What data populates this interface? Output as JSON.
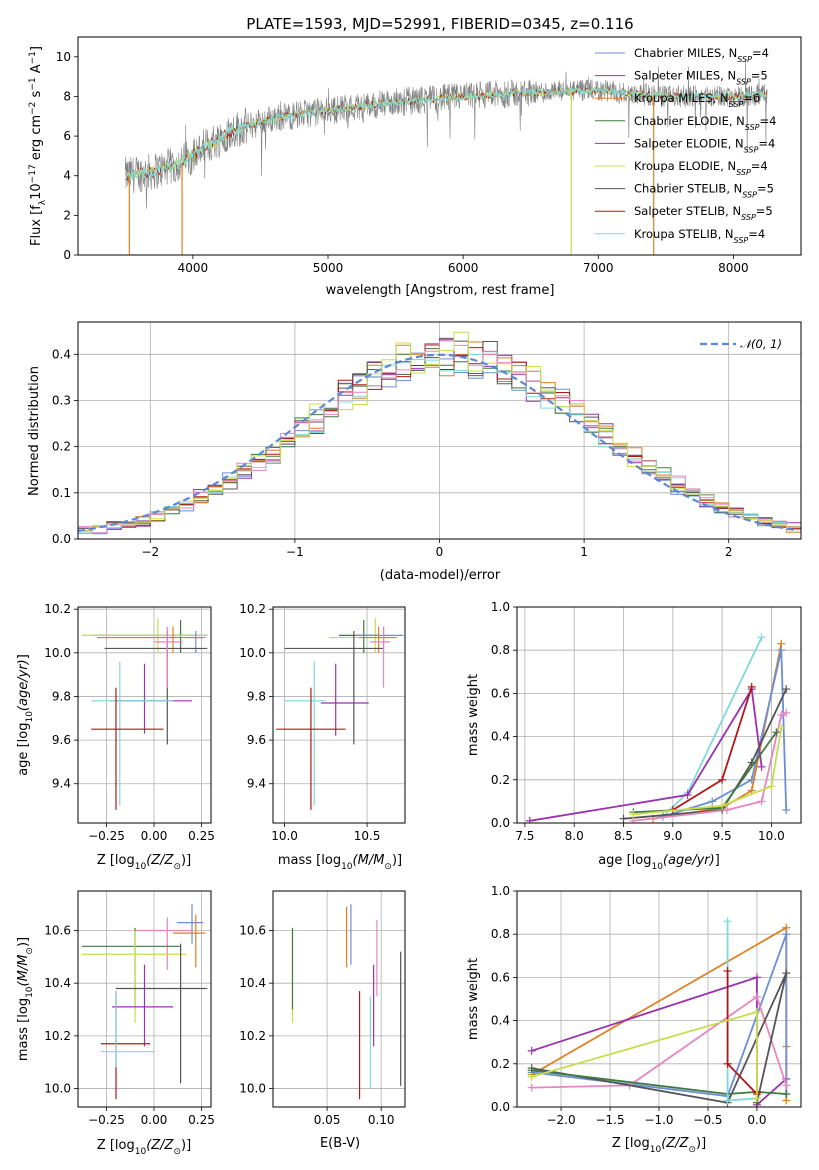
{
  "palette": [
    "#6b8ed6",
    "#9b31b0",
    "#e07f22",
    "#3f7a3f",
    "#9b31b0",
    "#c8dd4d",
    "#555555",
    "#b01818",
    "#7fd8dc"
  ],
  "chart_data": [
    {
      "id": "spectrum",
      "type": "line",
      "title": "PLATE=1593, MJD=52991, FIBERID=0345, z=0.116",
      "xlabel": "wavelength [Angstrom, rest frame]",
      "ylabel": "Flux [f",
      "xlim": [
        3150,
        8500
      ],
      "ylim": [
        0,
        11
      ],
      "xticks": [
        4000,
        5000,
        6000,
        7000,
        8000
      ],
      "yticks": [
        0,
        2,
        4,
        6,
        8,
        10
      ],
      "legend_position": "right",
      "data_color": "#808080",
      "model_color": "#7fd8dc",
      "continuum": {
        "x": [
          3500,
          3700,
          3900,
          4100,
          4300,
          4600,
          5000,
          5500,
          6000,
          6500,
          7000,
          7500,
          8000,
          8250
        ],
        "y": [
          4.0,
          4.2,
          4.6,
          5.5,
          6.3,
          6.9,
          7.3,
          7.7,
          8.0,
          8.2,
          8.3,
          8.0,
          8.0,
          8.1
        ]
      },
      "dropouts": [
        {
          "x": 3530,
          "color": "#e07f22"
        },
        {
          "x": 3920,
          "color": "#e07f22"
        },
        {
          "x": 6800,
          "color": "#c8dd4d"
        },
        {
          "x": 7410,
          "color": "#e07f22"
        }
      ],
      "legend": [
        {
          "base": "Chabrier MILES, N",
          "sub": "SSP",
          "tail": "=4",
          "color": "#6b8ed6"
        },
        {
          "base": "Salpeter MILES, N",
          "sub": "SSP",
          "tail": "=5",
          "color": "#9b31b0"
        },
        {
          "base": "Kroupa MILES, N",
          "sub": "SSP",
          "tail": "=6",
          "color": "#e07f22"
        },
        {
          "base": "Chabrier ELODIE, N",
          "sub": "SSP",
          "tail": "=4",
          "color": "#3f7a3f"
        },
        {
          "base": "Salpeter ELODIE, N",
          "sub": "SSP",
          "tail": "=4",
          "color": "#9b31b0"
        },
        {
          "base": "Kroupa ELODIE, N",
          "sub": "SSP",
          "tail": "=4",
          "color": "#c8dd4d"
        },
        {
          "base": "Chabrier STELIB, N",
          "sub": "SSP",
          "tail": "=5",
          "color": "#555555"
        },
        {
          "base": "Salpeter STELIB, N",
          "sub": "SSP",
          "tail": "=5",
          "color": "#b01818"
        },
        {
          "base": "Kroupa STELIB, N",
          "sub": "SSP",
          "tail": "=4",
          "color": "#7fd8dc"
        }
      ]
    },
    {
      "id": "residuals",
      "type": "line",
      "xlabel": "(data-model)/error",
      "ylabel": "Normed distribution",
      "xlim": [
        -2.5,
        2.5
      ],
      "ylim": [
        0,
        0.47
      ],
      "xticks": [
        -2,
        -1,
        0,
        1,
        2
      ],
      "yticks": [
        0.0,
        0.1,
        0.2,
        0.3,
        0.4
      ],
      "grid": true,
      "legend_position": "top-right",
      "legend": "𝒩(0, 1)",
      "gaussian": {
        "mean": 0,
        "sigma": 1,
        "color": "#5b88d6"
      },
      "hist_bin_width": 0.1,
      "hist_colors": [
        "#6b8ed6",
        "#9b31b0",
        "#e07f22",
        "#3f7a3f",
        "#555555",
        "#b01818",
        "#7fd8dc",
        "#e884c0",
        "#c8dd4d"
      ]
    },
    {
      "id": "age-vs-Z",
      "type": "scatter",
      "xlabel": "Z [log",
      "ylabel": "age  [log",
      "xlim": [
        -0.4,
        0.3
      ],
      "ylim": [
        9.22,
        10.21
      ],
      "xticks": [
        -0.25,
        0.0,
        0.25
      ],
      "yticks": [
        9.4,
        9.6,
        9.8,
        10.0,
        10.2
      ],
      "grid": true,
      "points": [
        {
          "x": 0.14,
          "xe": [
            -0.32,
            0.28
          ],
          "y": 10.08,
          "ye": [
            10.0,
            10.15
          ],
          "color": "#3f7a3f"
        },
        {
          "x": 0.02,
          "xe": [
            -0.38,
            0.28
          ],
          "y": 10.08,
          "ye": [
            10.0,
            10.16
          ],
          "color": "#c8dd4d"
        },
        {
          "x": 0.22,
          "xe": [
            0.18,
            0.26
          ],
          "y": 10.07,
          "ye": [
            10.0,
            10.1
          ],
          "color": "#6b8ed6"
        },
        {
          "x": 0.1,
          "xe": [
            -0.3,
            0.27
          ],
          "y": 10.07,
          "ye": [
            10.0,
            10.12
          ],
          "color": "#e07f22"
        },
        {
          "x": 0.07,
          "xe": [
            -0.26,
            0.28
          ],
          "y": 10.02,
          "ye": [
            9.58,
            10.1
          ],
          "color": "#555555"
        },
        {
          "x": -0.05,
          "xe": [
            -0.23,
            0.2
          ],
          "y": 9.78,
          "ye": [
            9.63,
            9.95
          ],
          "color": "#9b31b0"
        },
        {
          "x": -0.18,
          "xe": [
            -0.33,
            0.1
          ],
          "y": 9.78,
          "ye": [
            9.3,
            9.96
          ],
          "color": "#7fd8dc"
        },
        {
          "x": -0.2,
          "xe": [
            -0.33,
            0.05
          ],
          "y": 9.65,
          "ye": [
            9.28,
            9.84
          ],
          "color": "#b01818"
        },
        {
          "x": 0.07,
          "xe": [
            0.0,
            0.15
          ],
          "y": 10.05,
          "ye": [
            9.84,
            10.12
          ],
          "color": "#e884c0"
        }
      ]
    },
    {
      "id": "age-vs-mass",
      "type": "scatter",
      "xlabel": "mass [log",
      "yticks": [
        9.4,
        9.6,
        9.8,
        10.0,
        10.2
      ],
      "xlim": [
        9.93,
        10.73
      ],
      "ylim": [
        9.22,
        10.21
      ],
      "xticks": [
        10.0,
        10.5
      ],
      "grid": true,
      "points": [
        {
          "x": 10.48,
          "xe": [
            10.33,
            10.57
          ],
          "y": 10.08,
          "ye": [
            10.0,
            10.15
          ],
          "color": "#3f7a3f"
        },
        {
          "x": 10.55,
          "xe": [
            10.27,
            10.63
          ],
          "y": 10.07,
          "ye": [
            10.0,
            10.16
          ],
          "color": "#c8dd4d"
        },
        {
          "x": 10.6,
          "xe": [
            10.43,
            10.72
          ],
          "y": 10.08,
          "ye": [
            10.0,
            10.12
          ],
          "color": "#6b8ed6"
        },
        {
          "x": 10.57,
          "xe": [
            10.45,
            10.68
          ],
          "y": 10.07,
          "ye": [
            10.0,
            10.12
          ],
          "color": "#e07f22"
        },
        {
          "x": 10.42,
          "xe": [
            10.0,
            10.6
          ],
          "y": 10.02,
          "ye": [
            9.58,
            10.1
          ],
          "color": "#555555"
        },
        {
          "x": 10.31,
          "xe": [
            10.22,
            10.51
          ],
          "y": 9.77,
          "ye": [
            9.62,
            9.95
          ],
          "color": "#9b31b0"
        },
        {
          "x": 10.18,
          "xe": [
            10.0,
            10.25
          ],
          "y": 9.78,
          "ye": [
            9.3,
            9.96
          ],
          "color": "#7fd8dc"
        },
        {
          "x": 10.16,
          "xe": [
            9.95,
            10.37
          ],
          "y": 9.65,
          "ye": [
            9.28,
            9.84
          ],
          "color": "#b01818"
        },
        {
          "x": 10.6,
          "xe": [
            10.52,
            10.64
          ],
          "y": 10.05,
          "ye": [
            9.84,
            10.12
          ],
          "color": "#e884c0"
        }
      ]
    },
    {
      "id": "mass-weight-vs-age",
      "type": "line",
      "xlabel": "age  [log",
      "ylabel": "mass weight",
      "xlim": [
        7.42,
        10.3
      ],
      "ylim": [
        0,
        1
      ],
      "xticks": [
        7.5,
        8.0,
        8.5,
        9.0,
        9.5,
        10.0
      ],
      "yticks": [
        0.0,
        0.2,
        0.4,
        0.6,
        0.8,
        1.0
      ],
      "grid": true,
      "series": [
        {
          "color": "#7fd8dc",
          "x": [
            8.9,
            9.15,
            9.9
          ],
          "y": [
            0.03,
            0.14,
            0.86
          ]
        },
        {
          "color": "#e07f22",
          "x": [
            8.8,
            9.5,
            9.8,
            10.1
          ],
          "y": [
            0.02,
            0.07,
            0.15,
            0.83
          ]
        },
        {
          "color": "#6b8ed6",
          "x": [
            8.9,
            9.4,
            9.8,
            10.1,
            10.15
          ],
          "y": [
            0.03,
            0.1,
            0.2,
            0.8,
            0.06
          ]
        },
        {
          "color": "#9b31b0",
          "x": [
            7.55,
            9.15,
            9.8,
            9.9
          ],
          "y": [
            0.01,
            0.13,
            0.62,
            0.26
          ]
        },
        {
          "color": "#b01818",
          "x": [
            9.0,
            9.5,
            9.8
          ],
          "y": [
            0.06,
            0.2,
            0.63
          ]
        },
        {
          "color": "#555555",
          "x": [
            8.5,
            9.5,
            9.8,
            10.15
          ],
          "y": [
            0.02,
            0.06,
            0.28,
            0.62
          ]
        },
        {
          "color": "#e884c0",
          "x": [
            8.6,
            9.55,
            9.9,
            10.1,
            10.15
          ],
          "y": [
            0.01,
            0.06,
            0.1,
            0.5,
            0.51
          ]
        },
        {
          "color": "#3f7a3f",
          "x": [
            8.6,
            9.5,
            10.05
          ],
          "y": [
            0.05,
            0.07,
            0.42
          ]
        },
        {
          "color": "#c8dd4d",
          "x": [
            8.6,
            9.5,
            10.0,
            10.1
          ],
          "y": [
            0.04,
            0.08,
            0.17,
            0.44
          ]
        }
      ]
    },
    {
      "id": "mass-vs-Z",
      "type": "scatter",
      "xlabel": "Z [log",
      "ylabel": "mass [log",
      "xlim": [
        -0.4,
        0.3
      ],
      "ylim": [
        9.93,
        10.75
      ],
      "xticks": [
        -0.25,
        0.0,
        0.25
      ],
      "yticks": [
        10.0,
        10.2,
        10.4,
        10.6
      ],
      "grid": true,
      "points": [
        {
          "x": 0.2,
          "xe": [
            0.12,
            0.26
          ],
          "y": 10.63,
          "ye": [
            10.55,
            10.7
          ],
          "color": "#6b8ed6"
        },
        {
          "x": 0.22,
          "xe": [
            0.1,
            0.27
          ],
          "y": 10.59,
          "ye": [
            10.46,
            10.66
          ],
          "color": "#e07f22"
        },
        {
          "x": 0.07,
          "xe": [
            -0.1,
            0.2
          ],
          "y": 10.6,
          "ye": [
            10.45,
            10.65
          ],
          "color": "#e884c0"
        },
        {
          "x": -0.1,
          "xe": [
            -0.38,
            0.14
          ],
          "y": 10.54,
          "ye": [
            10.3,
            10.61
          ],
          "color": "#3f7a3f"
        },
        {
          "x": -0.1,
          "xe": [
            -0.38,
            0.17
          ],
          "y": 10.51,
          "ye": [
            10.25,
            10.6
          ],
          "color": "#c8dd4d"
        },
        {
          "x": 0.14,
          "xe": [
            -0.2,
            0.28
          ],
          "y": 10.38,
          "ye": [
            10.02,
            10.55
          ],
          "color": "#555555"
        },
        {
          "x": -0.05,
          "xe": [
            -0.22,
            0.1
          ],
          "y": 10.31,
          "ye": [
            10.16,
            10.47
          ],
          "color": "#9b31b0"
        },
        {
          "x": -0.2,
          "xe": [
            -0.28,
            -0.02
          ],
          "y": 10.17,
          "ye": [
            9.96,
            10.37
          ],
          "color": "#b01818"
        },
        {
          "x": -0.2,
          "xe": [
            -0.28,
            0.0
          ],
          "y": 10.14,
          "ye": [
            10.08,
            10.37
          ],
          "color": "#7fd8dc"
        }
      ]
    },
    {
      "id": "mass-vs-EBV",
      "type": "scatter",
      "xlabel": "E(B-V)",
      "xlim": [
        0.0,
        0.122
      ],
      "ylim": [
        9.93,
        10.75
      ],
      "xticks": [
        0.05,
        0.1
      ],
      "yticks": [
        10.0,
        10.2,
        10.4,
        10.6
      ],
      "grid": true,
      "points": [
        {
          "x": 0.018,
          "y": 10.4,
          "ye": [
            10.25,
            10.6
          ],
          "color": "#c8dd4d"
        },
        {
          "x": 0.018,
          "y": 10.45,
          "ye": [
            10.3,
            10.61
          ],
          "color": "#3f7a3f"
        },
        {
          "x": 0.068,
          "y": 10.56,
          "ye": [
            10.46,
            10.69
          ],
          "color": "#e07f22"
        },
        {
          "x": 0.072,
          "y": 10.6,
          "ye": [
            10.47,
            10.7
          ],
          "color": "#6b8ed6"
        },
        {
          "x": 0.08,
          "y": 10.17,
          "ye": [
            9.96,
            10.37
          ],
          "color": "#b01818"
        },
        {
          "x": 0.09,
          "y": 10.2,
          "ye": [
            10.0,
            10.35
          ],
          "color": "#7fd8dc"
        },
        {
          "x": 0.093,
          "y": 10.31,
          "ye": [
            10.16,
            10.47
          ],
          "color": "#9b31b0"
        },
        {
          "x": 0.096,
          "y": 10.5,
          "ye": [
            10.35,
            10.64
          ],
          "color": "#e884c0"
        },
        {
          "x": 0.118,
          "y": 10.27,
          "ye": [
            10.01,
            10.52
          ],
          "color": "#555555"
        }
      ]
    },
    {
      "id": "mass-weight-vs-Z",
      "type": "line",
      "xlabel": "Z [log",
      "ylabel": "mass weight",
      "xlim": [
        -2.45,
        0.45
      ],
      "ylim": [
        0,
        1
      ],
      "xticks": [
        -2.0,
        -1.5,
        -1.0,
        -0.5,
        0.0
      ],
      "yticks": [
        0.0,
        0.2,
        0.4,
        0.6,
        0.8,
        1.0
      ],
      "grid": true,
      "series": [
        {
          "color": "#e07f22",
          "x": [
            -2.3,
            0.3,
            0.3,
            0.3
          ],
          "y": [
            0.15,
            0.83,
            0.28,
            0.03
          ]
        },
        {
          "color": "#9b31b0",
          "x": [
            -2.3,
            0.0,
            0.0,
            0.3
          ],
          "y": [
            0.26,
            0.6,
            0.01,
            0.13
          ]
        },
        {
          "color": "#6b8ed6",
          "x": [
            -2.3,
            -0.3,
            0.3,
            0.3
          ],
          "y": [
            0.16,
            0.05,
            0.8,
            0.06
          ]
        },
        {
          "color": "#e884c0",
          "x": [
            -2.3,
            -1.3,
            0.0,
            0.3
          ],
          "y": [
            0.09,
            0.1,
            0.51,
            0.1
          ]
        },
        {
          "color": "#555555",
          "x": [
            -2.3,
            -0.3,
            0.3,
            0.0
          ],
          "y": [
            0.18,
            0.02,
            0.62,
            0.02
          ]
        },
        {
          "color": "#3f7a3f",
          "x": [
            -2.3,
            -0.3,
            0.0,
            0.3
          ],
          "y": [
            0.17,
            0.06,
            0.07,
            0.06
          ]
        },
        {
          "color": "#7fd8dc",
          "x": [
            -0.3,
            -0.3,
            0.0
          ],
          "y": [
            0.86,
            0.03,
            0.04
          ]
        },
        {
          "color": "#b01818",
          "x": [
            -0.3,
            -0.3,
            0.0,
            0.0
          ],
          "y": [
            0.63,
            0.2,
            0.06,
            0.07
          ]
        },
        {
          "color": "#c8dd4d",
          "x": [
            -2.3,
            0.0,
            0.0
          ],
          "y": [
            0.14,
            0.44,
            0.04
          ]
        }
      ]
    }
  ],
  "panel_labels": {
    "z_unit_sub": "10",
    "z_unit": "(Z/Z",
    "age_unit": "(age/yr)]",
    "mass_unit": "(M/M",
    "flux_sup1": "−17",
    "flux_mid": " erg cm",
    "flux_sup2": "−2",
    "flux_mid2": " s",
    "flux_sup3": "−1",
    "flux_mid3": " A",
    "flux_sup4": "−1",
    "flux_end": "]",
    "flux_sub": "λ",
    "flux_e": "10"
  }
}
